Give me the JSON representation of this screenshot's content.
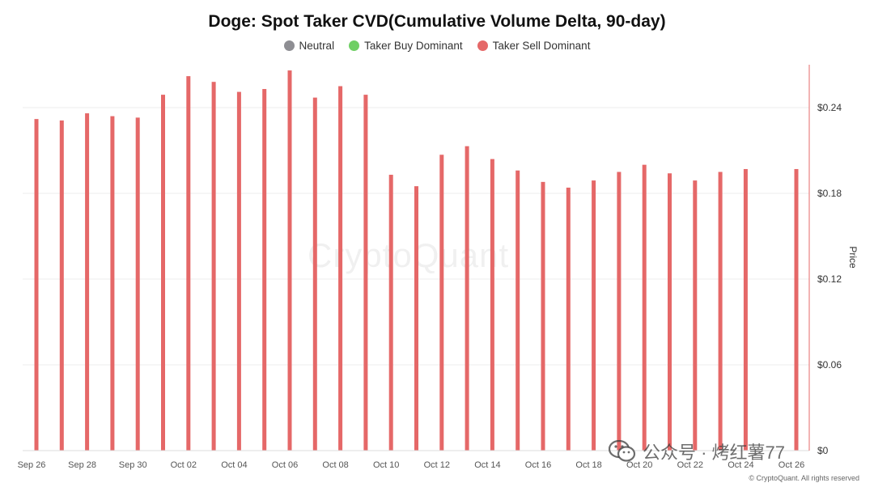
{
  "colors": {
    "neutral": "#8e8e93",
    "buy": "#6fcf64",
    "sell": "#e56868",
    "axis_line": "#e56868",
    "grid": "#eeeeee"
  },
  "chart_data": {
    "type": "bar",
    "title": "Doge: Spot Taker CVD(Cumulative Volume Delta, 90-day)",
    "legend": [
      {
        "name": "Neutral",
        "color": "#8e8e93"
      },
      {
        "name": "Taker Buy Dominant",
        "color": "#6fcf64"
      },
      {
        "name": "Taker Sell Dominant",
        "color": "#e56868"
      }
    ],
    "legend_position": "top-center",
    "x_ticks": [
      "Sep 26",
      "Sep 28",
      "Sep 30",
      "Oct 02",
      "Oct 04",
      "Oct 06",
      "Oct 08",
      "Oct 10",
      "Oct 12",
      "Oct 14",
      "Oct 16",
      "Oct 18",
      "Oct 20",
      "Oct 22",
      "Oct 24",
      "Oct 26"
    ],
    "y_axis": {
      "label": "Price",
      "position": "right",
      "ticks": [
        "$0",
        "$0.06",
        "$0.12",
        "$0.18",
        "$0.24"
      ],
      "range": [
        0,
        0.27
      ]
    },
    "grid": true,
    "series": [
      {
        "name": "Taker Sell Dominant",
        "color": "#e56868",
        "points": [
          {
            "x": "Sep 26",
            "y": 0.232
          },
          {
            "x": "Sep 27",
            "y": 0.231
          },
          {
            "x": "Sep 28",
            "y": 0.236
          },
          {
            "x": "Sep 29",
            "y": 0.234
          },
          {
            "x": "Sep 30",
            "y": 0.233
          },
          {
            "x": "Oct 01",
            "y": 0.249
          },
          {
            "x": "Oct 02",
            "y": 0.262
          },
          {
            "x": "Oct 03",
            "y": 0.258
          },
          {
            "x": "Oct 04",
            "y": 0.251
          },
          {
            "x": "Oct 05",
            "y": 0.253
          },
          {
            "x": "Oct 06",
            "y": 0.266
          },
          {
            "x": "Oct 07",
            "y": 0.247
          },
          {
            "x": "Oct 08",
            "y": 0.255
          },
          {
            "x": "Oct 09",
            "y": 0.249
          },
          {
            "x": "Oct 10",
            "y": 0.193
          },
          {
            "x": "Oct 11",
            "y": 0.185
          },
          {
            "x": "Oct 12",
            "y": 0.207
          },
          {
            "x": "Oct 13",
            "y": 0.213
          },
          {
            "x": "Oct 14",
            "y": 0.204
          },
          {
            "x": "Oct 15",
            "y": 0.196
          },
          {
            "x": "Oct 16",
            "y": 0.188
          },
          {
            "x": "Oct 17",
            "y": 0.184
          },
          {
            "x": "Oct 18",
            "y": 0.189
          },
          {
            "x": "Oct 19",
            "y": 0.195
          },
          {
            "x": "Oct 20",
            "y": 0.2
          },
          {
            "x": "Oct 21",
            "y": 0.194
          },
          {
            "x": "Oct 22",
            "y": 0.189
          },
          {
            "x": "Oct 23",
            "y": 0.195
          },
          {
            "x": "Oct 24",
            "y": 0.197
          },
          {
            "x": "Oct 26",
            "y": 0.197
          }
        ]
      }
    ]
  },
  "watermark": "CryptoQuant",
  "overlay_text": "公众号 · 烤红薯77",
  "footer": "© CryptoQuant. All rights reserved"
}
